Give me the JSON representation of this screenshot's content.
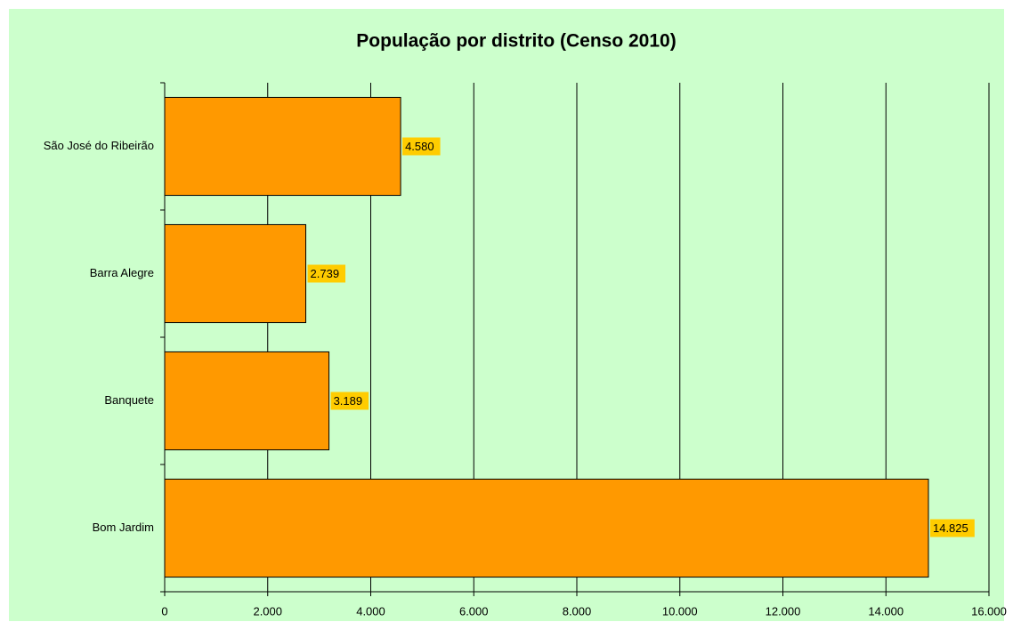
{
  "chart_data": {
    "type": "bar",
    "orientation": "horizontal",
    "title": "População por distrito (Censo 2010)",
    "categories": [
      "São José do Ribeirão",
      "Barra Alegre",
      "Banquete",
      "Bom Jardim"
    ],
    "values": [
      4580,
      2739,
      3189,
      14825
    ],
    "value_labels": [
      "4.580",
      "2.739",
      "3.189",
      "14.825"
    ],
    "color": "#ff9900",
    "label_background": "#ffcc00",
    "background": "#ccffcc",
    "xlim": [
      0,
      16000
    ],
    "xticks": [
      0,
      {
        "value": 2000,
        "label": "2.000"
      },
      {
        "value": 4000,
        "label": "4.000"
      },
      {
        "value": 6000,
        "label": "6.000"
      },
      {
        "value": 8000,
        "label": "8.000"
      },
      {
        "value": 10000,
        "label": "10.000"
      },
      {
        "value": 12000,
        "label": "12.000"
      },
      {
        "value": 14000,
        "label": "14.000"
      },
      {
        "value": 16000,
        "label": "16.000"
      }
    ],
    "grid": true
  }
}
